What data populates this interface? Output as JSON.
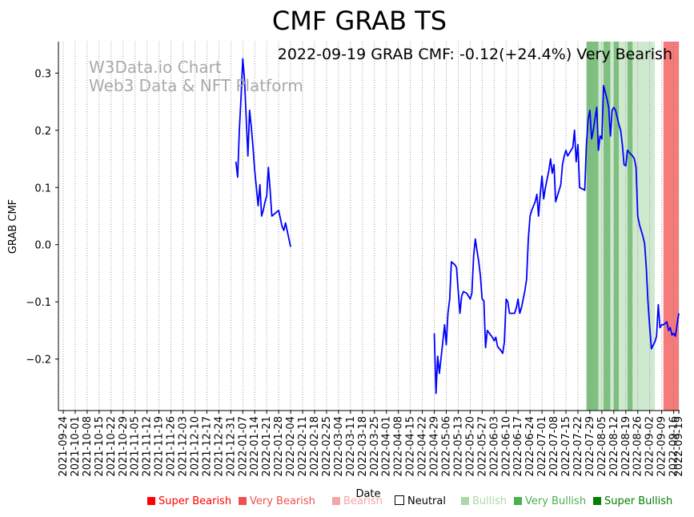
{
  "chart_data": {
    "type": "line",
    "title": "CMF GRAB TS",
    "subtitle": "2022-09-19 GRAB CMF: -0.12(+24.4%) Very Bearish",
    "xlabel": "Date",
    "ylabel": "GRAB CMF",
    "watermark": [
      "W3Data.io Chart",
      "Web3 Data & NFT Platform"
    ],
    "x_range": [
      "2021-09-24",
      "2022-09-19"
    ],
    "ylim": [
      -0.29,
      0.355
    ],
    "y_ticks": [
      -0.2,
      -0.1,
      0.0,
      0.1,
      0.2,
      0.3
    ],
    "y_tick_labels": [
      "−0.2",
      "−0.1",
      "0.0",
      "0.1",
      "0.2",
      "0.3"
    ],
    "x_tick_labels": [
      "2021-09-24",
      "2021-10-01",
      "2021-10-08",
      "2021-10-15",
      "2021-10-22",
      "2021-10-29",
      "2021-11-05",
      "2021-11-12",
      "2021-11-19",
      "2021-11-26",
      "2021-12-03",
      "2021-12-10",
      "2021-12-17",
      "2021-12-24",
      "2021-12-31",
      "2022-01-07",
      "2022-01-14",
      "2022-01-21",
      "2022-01-28",
      "2022-02-04",
      "2022-02-11",
      "2022-02-18",
      "2022-02-25",
      "2022-03-04",
      "2022-03-11",
      "2022-03-18",
      "2022-03-25",
      "2022-04-01",
      "2022-04-08",
      "2022-04-15",
      "2022-04-22",
      "2022-04-29",
      "2022-05-06",
      "2022-05-13",
      "2022-05-20",
      "2022-05-27",
      "2022-06-03",
      "2022-06-10",
      "2022-06-17",
      "2022-06-24",
      "2022-07-01",
      "2022-07-08",
      "2022-07-15",
      "2022-07-22",
      "2022-07-29",
      "2022-08-05",
      "2022-08-12",
      "2022-08-19",
      "2022-08-26",
      "2022-09-02",
      "2022-09-09",
      "2022-09-16",
      "2022-09-19"
    ],
    "grid": "vertical-dotted",
    "line_color": "#0000ff",
    "series": [
      {
        "segments": [
          [
            [
              "2022-01-03",
              0.145
            ],
            [
              "2022-01-04",
              0.118
            ],
            [
              "2022-01-05",
              0.2
            ],
            [
              "2022-01-06",
              0.26
            ],
            [
              "2022-01-07",
              0.325
            ],
            [
              "2022-01-08",
              0.29
            ],
            [
              "2022-01-10",
              0.155
            ],
            [
              "2022-01-11",
              0.235
            ],
            [
              "2022-01-12",
              0.205
            ],
            [
              "2022-01-13",
              0.17
            ],
            [
              "2022-01-14",
              0.13
            ],
            [
              "2022-01-16",
              0.068
            ],
            [
              "2022-01-17",
              0.105
            ],
            [
              "2022-01-18",
              0.05
            ],
            [
              "2022-01-19",
              0.06
            ],
            [
              "2022-01-20",
              0.075
            ],
            [
              "2022-01-21",
              0.085
            ],
            [
              "2022-01-22",
              0.135
            ],
            [
              "2022-01-23",
              0.095
            ],
            [
              "2022-01-24",
              0.05
            ],
            [
              "2022-01-26",
              0.055
            ],
            [
              "2022-01-28",
              0.06
            ],
            [
              "2022-01-30",
              0.032
            ],
            [
              "2022-01-31",
              0.025
            ],
            [
              "2022-02-01",
              0.038
            ],
            [
              "2022-02-04",
              -0.004
            ]
          ],
          [
            [
              "2022-04-29",
              -0.155
            ],
            [
              "2022-04-30",
              -0.26
            ],
            [
              "2022-05-01",
              -0.195
            ],
            [
              "2022-05-02",
              -0.225
            ],
            [
              "2022-05-04",
              -0.17
            ],
            [
              "2022-05-05",
              -0.14
            ],
            [
              "2022-05-06",
              -0.175
            ],
            [
              "2022-05-07",
              -0.12
            ],
            [
              "2022-05-08",
              -0.095
            ],
            [
              "2022-05-09",
              -0.03
            ],
            [
              "2022-05-11",
              -0.035
            ],
            [
              "2022-05-12",
              -0.04
            ],
            [
              "2022-05-13",
              -0.08
            ],
            [
              "2022-05-14",
              -0.12
            ],
            [
              "2022-05-15",
              -0.09
            ],
            [
              "2022-05-16",
              -0.082
            ],
            [
              "2022-05-18",
              -0.085
            ],
            [
              "2022-05-19",
              -0.09
            ],
            [
              "2022-05-20",
              -0.095
            ],
            [
              "2022-05-21",
              -0.085
            ],
            [
              "2022-05-22",
              -0.02
            ],
            [
              "2022-05-23",
              0.01
            ],
            [
              "2022-05-24",
              -0.01
            ],
            [
              "2022-05-25",
              -0.03
            ],
            [
              "2022-05-26",
              -0.055
            ],
            [
              "2022-05-27",
              -0.095
            ],
            [
              "2022-05-28",
              -0.098
            ],
            [
              "2022-05-29",
              -0.18
            ],
            [
              "2022-05-30",
              -0.15
            ],
            [
              "2022-06-01",
              -0.158
            ],
            [
              "2022-06-02",
              -0.162
            ],
            [
              "2022-06-03",
              -0.168
            ],
            [
              "2022-06-04",
              -0.162
            ],
            [
              "2022-06-05",
              -0.178
            ],
            [
              "2022-06-07",
              -0.185
            ],
            [
              "2022-06-08",
              -0.19
            ],
            [
              "2022-06-09",
              -0.17
            ],
            [
              "2022-06-10",
              -0.095
            ],
            [
              "2022-06-11",
              -0.1
            ],
            [
              "2022-06-12",
              -0.12
            ],
            [
              "2022-06-14",
              -0.12
            ],
            [
              "2022-06-15",
              -0.12
            ],
            [
              "2022-06-16",
              -0.11
            ],
            [
              "2022-06-17",
              -0.095
            ],
            [
              "2022-06-18",
              -0.12
            ],
            [
              "2022-06-19",
              -0.11
            ],
            [
              "2022-06-21",
              -0.08
            ],
            [
              "2022-06-22",
              -0.06
            ],
            [
              "2022-06-23",
              0.01
            ],
            [
              "2022-06-24",
              0.05
            ],
            [
              "2022-06-25",
              0.06
            ],
            [
              "2022-06-27",
              0.075
            ],
            [
              "2022-06-28",
              0.088
            ],
            [
              "2022-06-29",
              0.05
            ],
            [
              "2022-06-30",
              0.09
            ],
            [
              "2022-07-01",
              0.12
            ],
            [
              "2022-07-02",
              0.08
            ],
            [
              "2022-07-03",
              0.1
            ],
            [
              "2022-07-05",
              0.13
            ],
            [
              "2022-07-06",
              0.15
            ],
            [
              "2022-07-07",
              0.125
            ],
            [
              "2022-07-08",
              0.14
            ],
            [
              "2022-07-09",
              0.075
            ],
            [
              "2022-07-11",
              0.095
            ],
            [
              "2022-07-12",
              0.105
            ],
            [
              "2022-07-13",
              0.14
            ],
            [
              "2022-07-14",
              0.155
            ],
            [
              "2022-07-15",
              0.165
            ],
            [
              "2022-07-16",
              0.155
            ],
            [
              "2022-07-18",
              0.165
            ],
            [
              "2022-07-19",
              0.17
            ],
            [
              "2022-07-20",
              0.2
            ],
            [
              "2022-07-21",
              0.145
            ],
            [
              "2022-07-22",
              0.175
            ],
            [
              "2022-07-23",
              0.1
            ],
            [
              "2022-07-25",
              0.097
            ],
            [
              "2022-07-26",
              0.095
            ],
            [
              "2022-07-27",
              0.175
            ],
            [
              "2022-07-28",
              0.22
            ],
            [
              "2022-07-29",
              0.235
            ],
            [
              "2022-07-30",
              0.185
            ],
            [
              "2022-07-31",
              0.2
            ],
            [
              "2022-08-01",
              0.22
            ],
            [
              "2022-08-02",
              0.24
            ],
            [
              "2022-08-03",
              0.165
            ],
            [
              "2022-08-04",
              0.19
            ],
            [
              "2022-08-05",
              0.185
            ],
            [
              "2022-08-06",
              0.278
            ],
            [
              "2022-08-08",
              0.255
            ],
            [
              "2022-08-09",
              0.24
            ],
            [
              "2022-08-10",
              0.19
            ],
            [
              "2022-08-11",
              0.235
            ],
            [
              "2022-08-12",
              0.24
            ],
            [
              "2022-08-13",
              0.235
            ],
            [
              "2022-08-15",
              0.21
            ],
            [
              "2022-08-16",
              0.2
            ],
            [
              "2022-08-17",
              0.175
            ],
            [
              "2022-08-18",
              0.14
            ],
            [
              "2022-08-19",
              0.138
            ],
            [
              "2022-08-20",
              0.165
            ],
            [
              "2022-08-22",
              0.158
            ],
            [
              "2022-08-23",
              0.155
            ],
            [
              "2022-08-24",
              0.15
            ],
            [
              "2022-08-25",
              0.135
            ],
            [
              "2022-08-26",
              0.05
            ],
            [
              "2022-08-27",
              0.035
            ],
            [
              "2022-08-29",
              0.015
            ],
            [
              "2022-08-30",
              0.002
            ],
            [
              "2022-08-31",
              -0.04
            ],
            [
              "2022-09-01",
              -0.1
            ],
            [
              "2022-09-02",
              -0.145
            ],
            [
              "2022-09-03",
              -0.182
            ],
            [
              "2022-09-05",
              -0.17
            ],
            [
              "2022-09-06",
              -0.16
            ],
            [
              "2022-09-07",
              -0.105
            ],
            [
              "2022-09-08",
              -0.145
            ],
            [
              "2022-09-09",
              -0.14
            ],
            [
              "2022-09-10",
              -0.14
            ],
            [
              "2022-09-12",
              -0.135
            ],
            [
              "2022-09-13",
              -0.15
            ],
            [
              "2022-09-14",
              -0.145
            ],
            [
              "2022-09-15",
              -0.158
            ],
            [
              "2022-09-16",
              -0.155
            ],
            [
              "2022-09-17",
              -0.16
            ],
            [
              "2022-09-19",
              -0.12
            ]
          ]
        ]
      }
    ],
    "bands": [
      {
        "start": "2022-07-27",
        "end": "2022-07-29",
        "class": "Very Bullish"
      },
      {
        "start": "2022-07-29",
        "end": "2022-08-03",
        "class": "Very Bullish"
      },
      {
        "start": "2022-08-03",
        "end": "2022-08-06",
        "class": "Bullish"
      },
      {
        "start": "2022-08-06",
        "end": "2022-08-10",
        "class": "Very Bullish"
      },
      {
        "start": "2022-08-10",
        "end": "2022-08-12",
        "class": "Bullish"
      },
      {
        "start": "2022-08-12",
        "end": "2022-08-15",
        "class": "Very Bullish"
      },
      {
        "start": "2022-08-15",
        "end": "2022-08-20",
        "class": "Bullish"
      },
      {
        "start": "2022-08-20",
        "end": "2022-08-23",
        "class": "Very Bullish"
      },
      {
        "start": "2022-08-23",
        "end": "2022-09-05",
        "class": "Bullish"
      },
      {
        "start": "2022-09-05",
        "end": "2022-09-10",
        "class": "Neutral"
      },
      {
        "start": "2022-09-10",
        "end": "2022-09-19",
        "class": "Very Bearish"
      }
    ],
    "legend": {
      "placement": "bottom-center",
      "items": [
        {
          "label": "Super Bearish",
          "color": "#ff0000"
        },
        {
          "label": "Very Bearish",
          "color": "#f05050"
        },
        {
          "label": "Bearish",
          "color": "#f4a6a6"
        },
        {
          "label": "Neutral",
          "color": "#ffffff"
        },
        {
          "label": "Bullish",
          "color": "#a9d8a9"
        },
        {
          "label": "Very Bullish",
          "color": "#4caf50"
        },
        {
          "label": "Super Bullish",
          "color": "#008000"
        }
      ]
    },
    "band_colors": {
      "Super Bearish": "#ff0000",
      "Very Bearish": "#f57a7a",
      "Bearish": "#f9c3c3",
      "Neutral": "#ffffff",
      "Bullish": "#cfe9cf",
      "Very Bullish": "#7fbf7f",
      "Super Bullish": "#2e8b2e"
    }
  }
}
